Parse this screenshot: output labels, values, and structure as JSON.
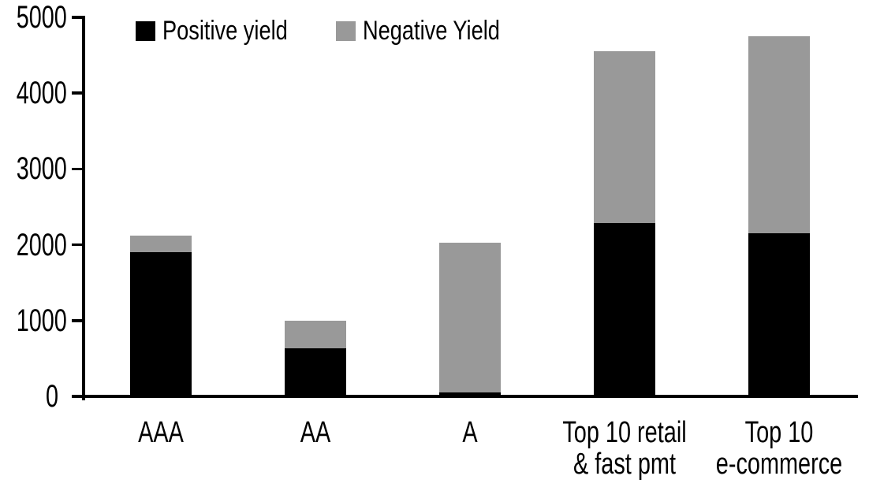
{
  "chart_data": {
    "type": "bar",
    "stacked": true,
    "title": "",
    "xlabel": "",
    "ylabel": "",
    "categories": [
      "AAA",
      "AA",
      "A",
      "Top 10 retail\n& fast pmt",
      "Top 10\ne-commerce"
    ],
    "series": [
      {
        "name": "Positive yield",
        "color": "#000000",
        "values": [
          1900,
          630,
          50,
          2290,
          2150
        ]
      },
      {
        "name": "Negative Yield",
        "color": "#999999",
        "values": [
          220,
          370,
          1980,
          2260,
          2600
        ]
      }
    ],
    "totals": [
      2120,
      1000,
      2030,
      4550,
      4750
    ],
    "ylim": [
      0,
      5000
    ],
    "y_ticks": [
      0,
      1000,
      2000,
      3000,
      4000,
      5000
    ],
    "grid": false,
    "legend_position": "top-left",
    "background_color": "#ffffff",
    "axis_color": "#000000"
  }
}
